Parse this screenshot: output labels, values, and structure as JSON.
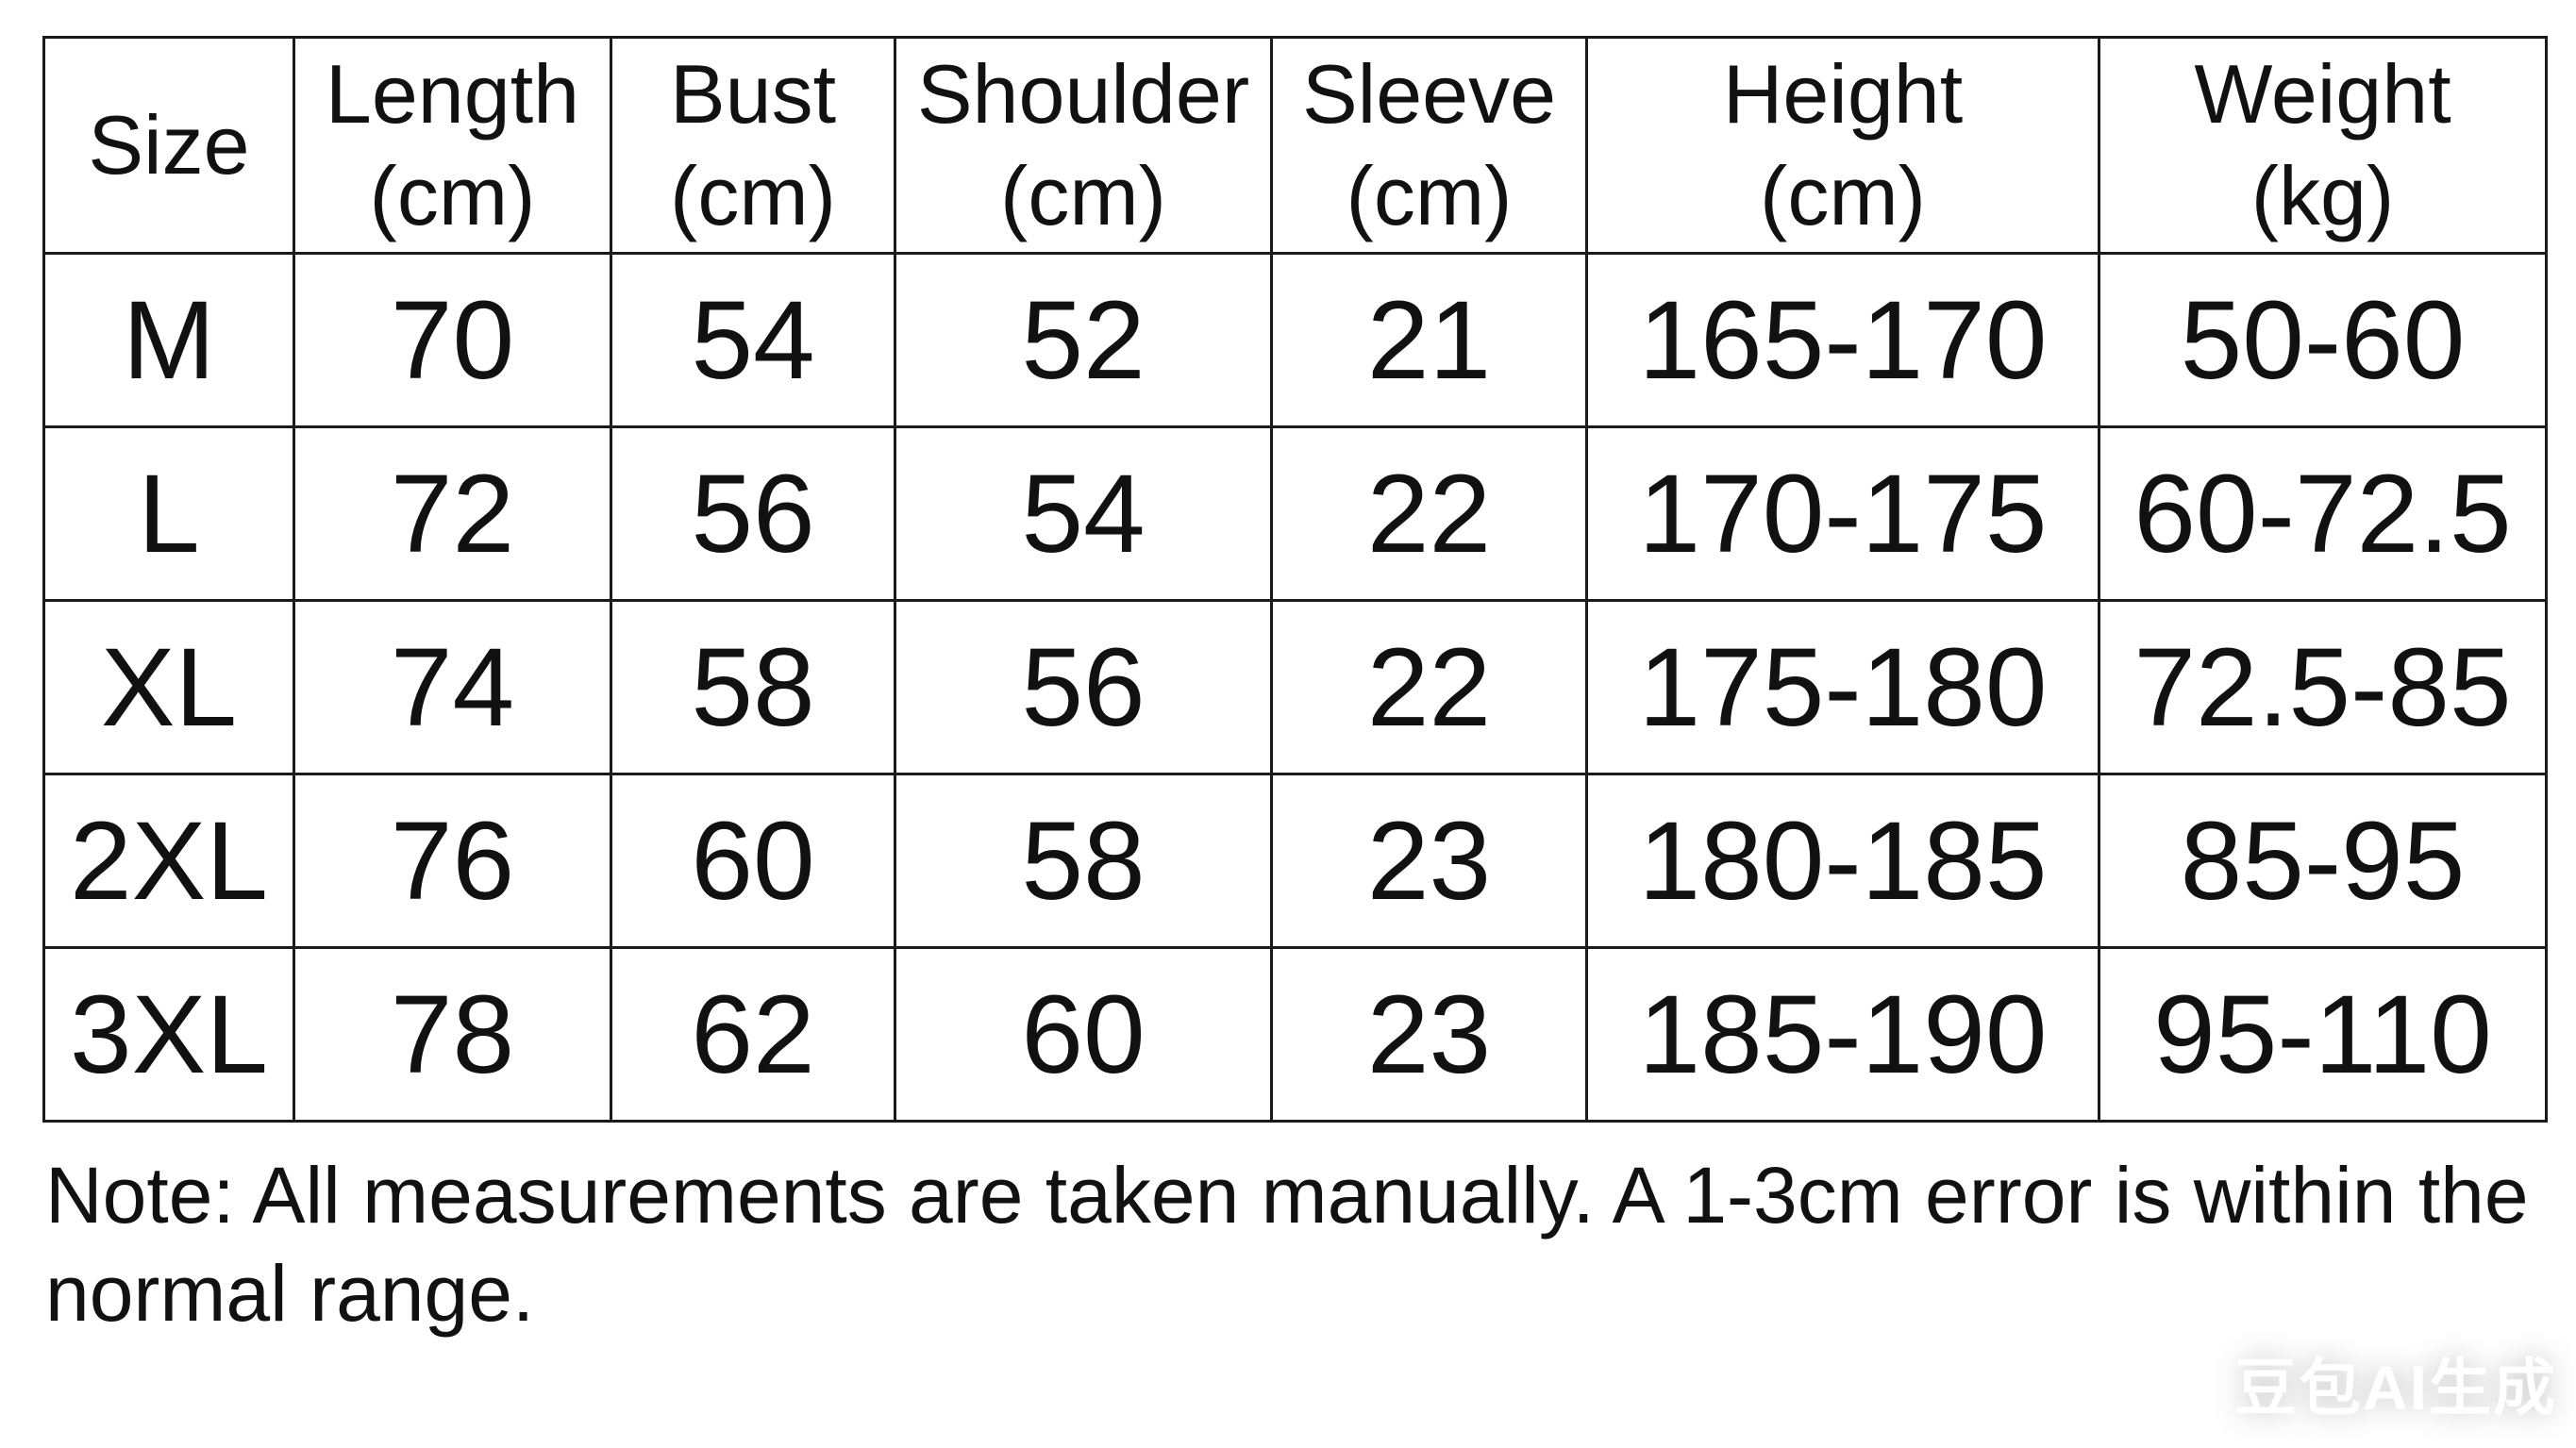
{
  "headers": [
    [
      "Size",
      ""
    ],
    [
      "Length",
      "(cm)"
    ],
    [
      "Bust",
      "(cm)"
    ],
    [
      "Shoulder",
      "(cm)"
    ],
    [
      "Sleeve",
      "(cm)"
    ],
    [
      "Height",
      "(cm)"
    ],
    [
      "Weight",
      "(kg)"
    ]
  ],
  "rows": [
    [
      "M",
      "70",
      "54",
      "52",
      "21",
      "165-170",
      "50-60"
    ],
    [
      "L",
      "72",
      "56",
      "54",
      "22",
      "170-175",
      "60-72.5"
    ],
    [
      "XL",
      "74",
      "58",
      "56",
      "22",
      "175-180",
      "72.5-85"
    ],
    [
      "2XL",
      "76",
      "60",
      "58",
      "23",
      "180-185",
      "85-95"
    ],
    [
      "3XL",
      "78",
      "62",
      "60",
      "23",
      "185-190",
      "95-110"
    ]
  ],
  "note": "Note: All measurements are taken manually. A 1-3cm error is within the normal range.",
  "watermark": "豆包AI生成"
}
